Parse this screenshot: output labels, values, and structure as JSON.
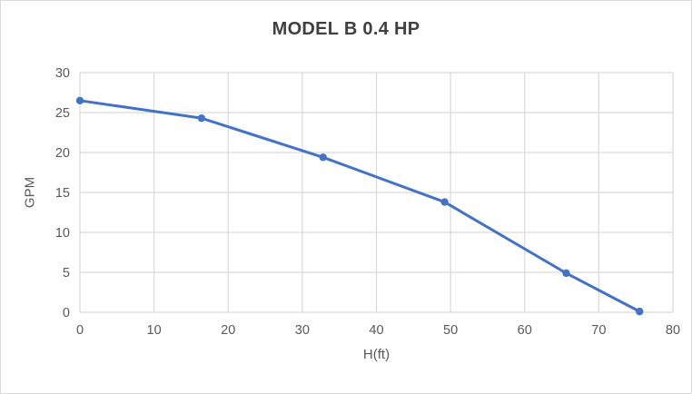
{
  "chart_data": {
    "type": "line",
    "title": "MODEL B 0.4 HP",
    "xlabel": "H(ft)",
    "ylabel": "GPM",
    "x": [
      0,
      16.4,
      32.8,
      49.2,
      65.6,
      75.5
    ],
    "y": [
      26.5,
      24.3,
      19.4,
      13.8,
      4.9,
      0.1
    ],
    "xlim": [
      0,
      80
    ],
    "ylim": [
      0,
      30
    ],
    "xticks": [
      0,
      10,
      20,
      30,
      40,
      50,
      60,
      70,
      80
    ],
    "yticks": [
      0,
      5,
      10,
      15,
      20,
      25,
      30
    ],
    "grid": true,
    "legend_position": "none",
    "marker": "circle",
    "colors": {
      "series": "#4472C4",
      "gridline": "#d9d9d9",
      "axis_text": "#595959",
      "title_text": "#404040",
      "chart_border": "#d9d9d9"
    }
  }
}
